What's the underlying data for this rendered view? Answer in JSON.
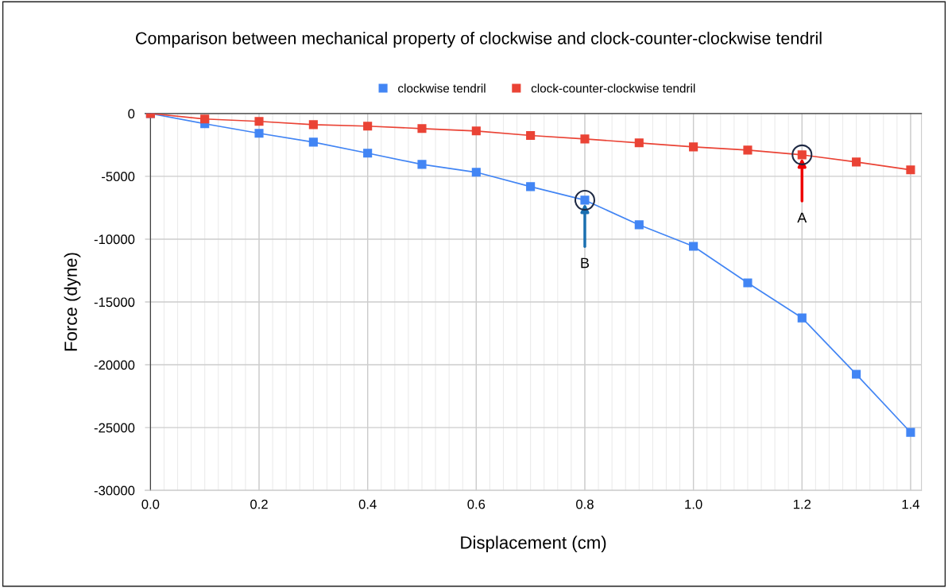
{
  "chart_data": {
    "type": "line",
    "title": "Comparison between mechanical property of clockwise and clock-counter-clockwise tendril",
    "xlabel": "Displacement (cm)",
    "ylabel": "Force (dyne)",
    "x": [
      0,
      0.1,
      0.2,
      0.3,
      0.4,
      0.5,
      0.6,
      0.7,
      0.8,
      0.9,
      1.0,
      1.1,
      1.2,
      1.3,
      1.4
    ],
    "series": [
      {
        "name": "clockwise tendril",
        "color": "#4285f4",
        "values": [
          0,
          -820,
          -1580,
          -2280,
          -3160,
          -4050,
          -4680,
          -5820,
          -6900,
          -8860,
          -10570,
          -13480,
          -16270,
          -20760,
          -25380
        ]
      },
      {
        "name": "clock-counter-clockwise tendril",
        "color": "#ea4335",
        "values": [
          0,
          -440,
          -630,
          -890,
          -1010,
          -1200,
          -1390,
          -1750,
          -2030,
          -2340,
          -2660,
          -2910,
          -3290,
          -3860,
          -4490
        ]
      }
    ],
    "annotations": [
      {
        "text": "A",
        "x": 1.2,
        "y": -3290
      },
      {
        "text": "B",
        "x": 0.8,
        "y": -6900
      }
    ],
    "xlim": [
      -0.01,
      1.42
    ],
    "xticks": [
      {
        "value": 0,
        "label": "0.0"
      },
      0.2,
      0.4,
      0.6,
      0.8,
      {
        "value": 1,
        "label": "1.0"
      },
      1.2,
      1.4
    ],
    "ylim": [
      -30000,
      0
    ],
    "yticks": [
      -30000,
      -25000,
      -20000,
      -15000,
      -10000,
      -5000,
      0
    ],
    "grid": true,
    "legend": "top",
    "marker": "square",
    "line_style": "solid"
  }
}
